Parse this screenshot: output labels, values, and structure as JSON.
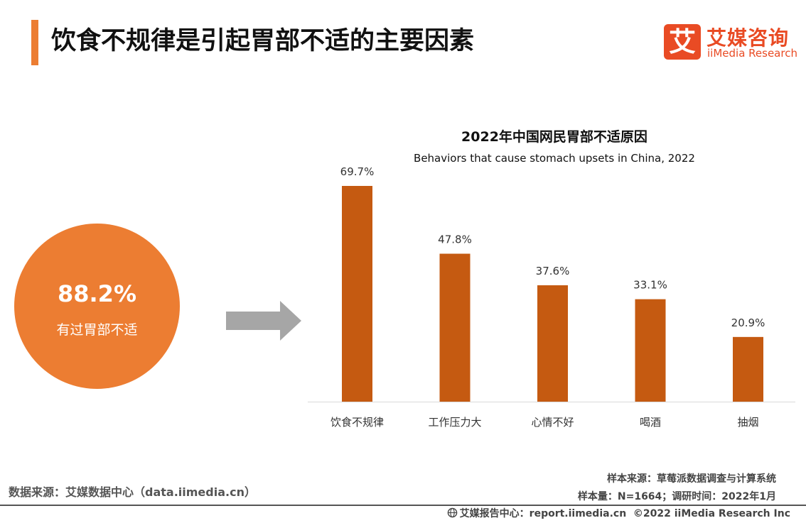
{
  "header": {
    "title": "饮食不规律是引起胃部不适的主要因素",
    "logo_mark": "艾",
    "logo_cn": "艾媒咨询",
    "logo_en": "iiMedia Research"
  },
  "highlight": {
    "value": "88.2%",
    "label": "有过胃部不适"
  },
  "colors": {
    "accent": "#ec7d32",
    "bar": "#c55a11",
    "arrow": "#a6a6a6",
    "brand": "#e94b24"
  },
  "chart_data": {
    "type": "bar",
    "title": "2022年中国网民胃部不适原因",
    "subtitle": "Behaviors that cause stomach upsets in China, 2022",
    "categories": [
      "饮食不规律",
      "工作压力大",
      "心情不好",
      "喝酒",
      "抽烟"
    ],
    "values": [
      69.7,
      47.8,
      37.6,
      33.1,
      20.9
    ],
    "value_labels": [
      "69.7%",
      "47.8%",
      "37.6%",
      "33.1%",
      "20.9%"
    ],
    "xlabel": "",
    "ylabel": "",
    "ylim": [
      0,
      70
    ],
    "grid": false,
    "legend": "none"
  },
  "footer": {
    "source": "数据来源：艾媒数据中心（data.iimedia.cn）",
    "sample_source": "样本来源：草莓派数据调查与计算系统",
    "sample_size": "样本量：N=1664；调研时间：2022年1月",
    "report_center": "艾媒报告中心：report.iimedia.cn",
    "copyright": "©2022 iiMedia Research Inc"
  }
}
